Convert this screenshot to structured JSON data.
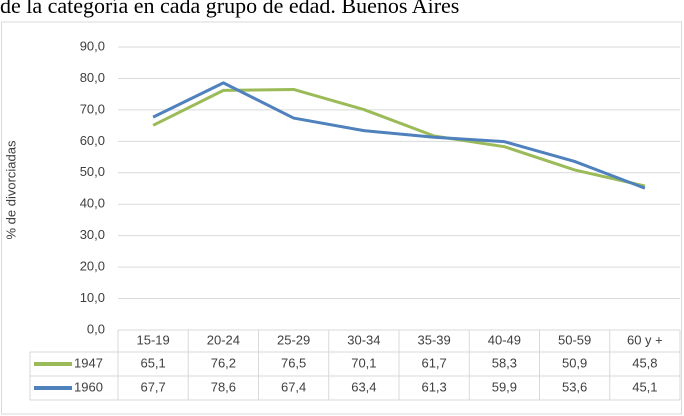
{
  "chart_data": {
    "type": "line",
    "title": "de la categoría en cada grupo de edad. Buenos Aires",
    "y_label": "% de divorciadas",
    "categories": [
      "15-19",
      "20-24",
      "25-29",
      "30-34",
      "35-39",
      "40-49",
      "50-59",
      "60 y +"
    ],
    "series": [
      {
        "name": "1947",
        "color": "#9bbb59",
        "values": [
          65.1,
          76.2,
          76.5,
          70.1,
          61.7,
          58.3,
          50.9,
          45.8
        ],
        "value_labels": [
          "65,1",
          "76,2",
          "76,5",
          "70,1",
          "61,7",
          "58,3",
          "50,9",
          "45,8"
        ]
      },
      {
        "name": "1960",
        "color": "#4f81bd",
        "values": [
          67.7,
          78.6,
          67.4,
          63.4,
          61.3,
          59.9,
          53.6,
          45.1
        ],
        "value_labels": [
          "67,7",
          "78,6",
          "67,4",
          "63,4",
          "61,3",
          "59,9",
          "53,6",
          "45,1"
        ]
      }
    ],
    "ylim": [
      0,
      90
    ],
    "yticks": [
      {
        "value": 0,
        "label": "0,0"
      },
      {
        "value": 10,
        "label": "10,0"
      },
      {
        "value": 20,
        "label": "20,0"
      },
      {
        "value": 30,
        "label": "30,0"
      },
      {
        "value": 40,
        "label": "40,0"
      },
      {
        "value": 50,
        "label": "50,0"
      },
      {
        "value": 60,
        "label": "60,0"
      },
      {
        "value": 70,
        "label": "70,0"
      },
      {
        "value": 80,
        "label": "80,0"
      },
      {
        "value": 90,
        "label": "90,0"
      }
    ],
    "grid": true
  }
}
